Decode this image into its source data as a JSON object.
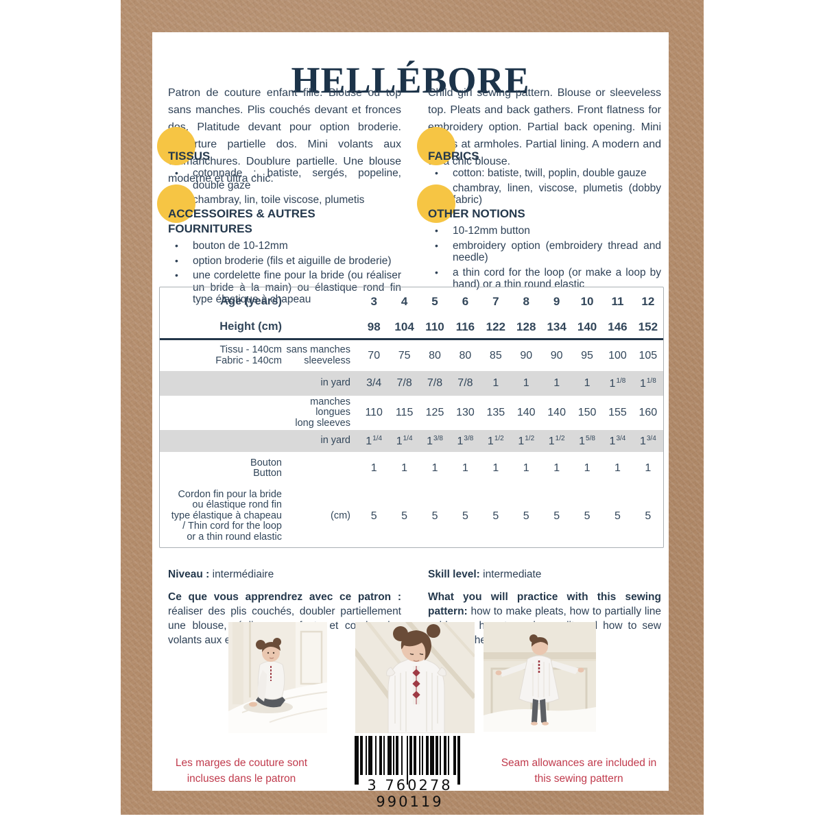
{
  "title": "HELLÉBORE",
  "intro_fr": "Patron de couture enfant fille. Blouse ou top sans manches. Plis couchés devant et fronces dos. Platitude devant pour option broderie. Ouverture partielle dos. Mini volants aux emmanchures. Doublure partielle. Une blouse moderne et ultra chic.",
  "intro_en": "Child girl sewing pattern. Blouse or sleeveless top. Pleats and back gathers. Front flatness for embroidery option. Partial back opening. Mini ruffles at armholes. Partial lining. A modern and ultra chic blouse.",
  "sections": {
    "tissus": {
      "heading": "TISSUS",
      "items": [
        "cotonnade : batiste, sergés, popeline, double gaze",
        "chambray, lin, toile viscose, plumetis"
      ]
    },
    "fabrics": {
      "heading": "FABRICS",
      "items": [
        "cotton: batiste, twill, poplin, double gauze",
        "chambray, linen, viscose, plumetis (dobby fabric)"
      ]
    },
    "accessoires": {
      "heading": "ACCESSOIRES & AUTRES FOURNITURES",
      "items": [
        "bouton de 10-12mm",
        "option broderie (fils et aiguille de broderie)",
        "une cordelette fine pour la bride (ou réaliser un bride à la main) ou élastique rond fin type élastique à chapeau"
      ]
    },
    "notions": {
      "heading": "OTHER NOTIONS",
      "items": [
        "10-12mm button",
        "embroidery option (embroidery thread and needle)",
        "a thin cord for the loop (or make a loop by hand) or a thin round elastic"
      ]
    }
  },
  "size_table": {
    "header_rows": [
      {
        "label1": "Age (years)",
        "values": [
          "3",
          "4",
          "5",
          "6",
          "7",
          "8",
          "9",
          "10",
          "11",
          "12"
        ]
      },
      {
        "label1": "Height (cm)",
        "values": [
          "98",
          "104",
          "110",
          "116",
          "122",
          "128",
          "134",
          "140",
          "146",
          "152"
        ]
      }
    ],
    "rows": [
      {
        "label1": "Tissu - 140cm",
        "label2": "Fabric - 140cm",
        "sublabel1": "sans manches",
        "sublabel2": "sleeveless",
        "shaded": false,
        "values": [
          "70",
          "75",
          "80",
          "80",
          "85",
          "90",
          "90",
          "95",
          "100",
          "105"
        ]
      },
      {
        "sublabel1": "in yard",
        "shaded": true,
        "values": [
          "3/4",
          "7/8",
          "7/8",
          "7/8",
          "1",
          "1",
          "1",
          "1",
          "1 1/8",
          "1 1/8"
        ]
      },
      {
        "sublabel1": "manches longues",
        "sublabel2": "long sleeves",
        "shaded": false,
        "values": [
          "110",
          "115",
          "125",
          "130",
          "135",
          "140",
          "140",
          "150",
          "155",
          "160"
        ]
      },
      {
        "sublabel1": "in yard",
        "shaded": true,
        "values": [
          "1 1/4",
          "1 1/4",
          "1 3/8",
          "1 3/8",
          "1 1/2",
          "1 1/2",
          "1 1/2",
          "1 5/8",
          "1 3/4",
          "1 3/4"
        ]
      },
      {
        "label1": "Bouton",
        "label2": "Button",
        "shaded": false,
        "values": [
          "1",
          "1",
          "1",
          "1",
          "1",
          "1",
          "1",
          "1",
          "1",
          "1"
        ]
      },
      {
        "label_lines": [
          "Cordon fin pour la bride",
          "ou  élastique rond fin",
          "type élastique à chapeau",
          "/ Thin cord for the loop",
          "or a thin round elastic"
        ],
        "sublabel1": "(cm)",
        "shaded": false,
        "values": [
          "5",
          "5",
          "5",
          "5",
          "5",
          "5",
          "5",
          "5",
          "5",
          "5"
        ]
      }
    ]
  },
  "level_fr": {
    "bold": "Niveau :",
    "text": " intermédiaire"
  },
  "level_en": {
    "bold": "Skill level:",
    "text": " intermediate"
  },
  "learn_fr": {
    "bold": "Ce que vous apprendrez avec ce patron :",
    "text": " réaliser des plis couchés, doubler partiellement une blouse, réaliser une fente et coudre des volants aux emmanchures."
  },
  "learn_en": {
    "bold": "What you will practice with this sewing pattern:",
    "text": " how to make pleats, how to partially line a blouse, how to make a slit and how to sew ruffles to the armholes."
  },
  "footer": {
    "seam_fr": "Les marges de couture sont incluses dans le patron",
    "seam_en": "Seam allowances are included in this sewing pattern",
    "barcode_number": "3 760278 990119"
  },
  "colors": {
    "navy": "#1c3349",
    "body_text": "#2e4156",
    "accent_yellow": "#f6c544",
    "accent_red": "#c03a4c",
    "kraft": "#b38c6b",
    "table_band_gray": "#d9d9d9"
  }
}
